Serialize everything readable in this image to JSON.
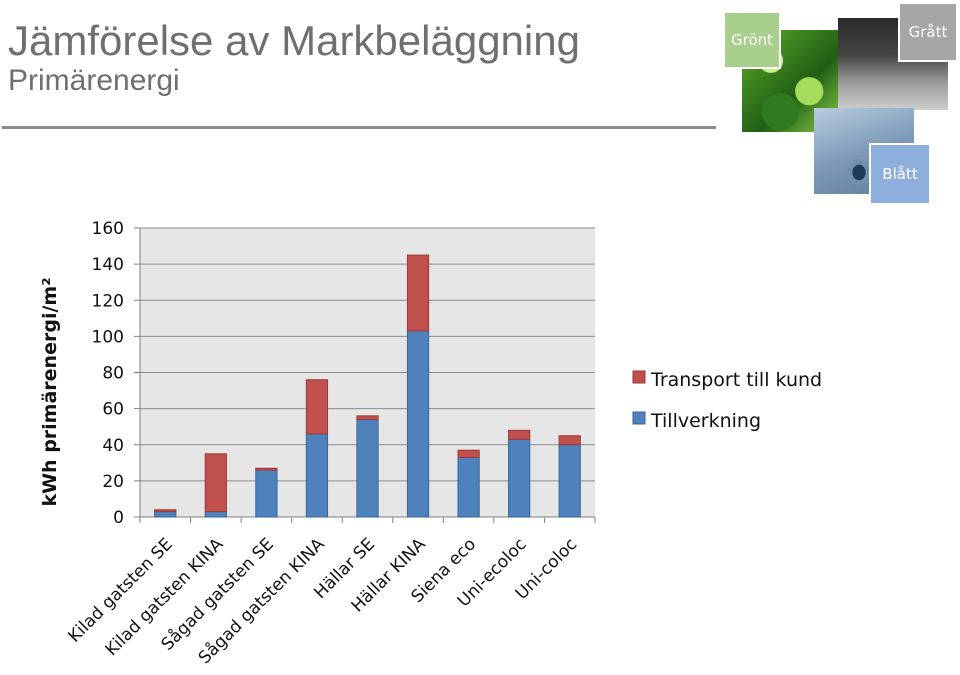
{
  "header": {
    "title": "Jämförelse av Markbeläggning",
    "subtitle": "Primärenergi"
  },
  "tiles": {
    "green_label": "Grönt",
    "grey_label": "Grått",
    "blue_label": "Blått"
  },
  "chart_data": {
    "type": "bar",
    "stacked": true,
    "ylabel": "kWh primärenergi/m²",
    "ylim": [
      0,
      160
    ],
    "yticks": [
      0,
      20,
      40,
      60,
      80,
      100,
      120,
      140,
      160
    ],
    "grid": true,
    "legend_position": "right",
    "categories": [
      "Kilad gatsten SE",
      "Kilad gatsten KINA",
      "Sågad gatsten SE",
      "Sågad gatsten KINA",
      "Hällar SE",
      "Hällar KINA",
      "Siena eco",
      "Uni-ecoloc",
      "Uni-coloc"
    ],
    "series": [
      {
        "name": "Tillverkning",
        "color": "#4f81bd",
        "values": [
          3,
          3,
          26,
          46,
          54,
          103,
          33,
          43,
          40
        ]
      },
      {
        "name": "Transport till kund",
        "color": "#c0504d",
        "values": [
          1,
          32,
          1,
          30,
          2,
          42,
          4,
          5,
          5
        ]
      }
    ],
    "legend_order": [
      "Transport till kund",
      "Tillverkning"
    ]
  }
}
